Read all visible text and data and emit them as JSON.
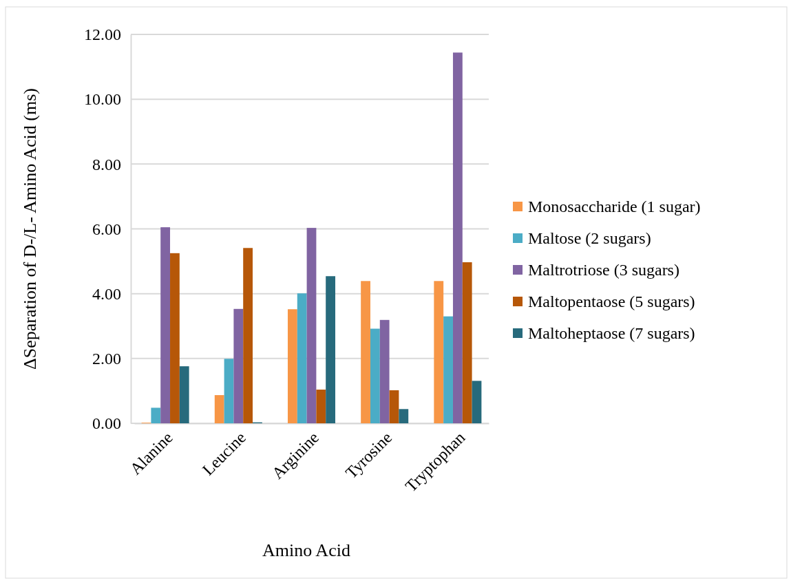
{
  "chart_data": {
    "type": "bar",
    "xlabel": "Amino Acid",
    "ylabel": "ΔSeparation of D-/L- Amino Acid (ms)",
    "categories": [
      "Alanine",
      "Leucine",
      "Arginine",
      "Tyrosine",
      "Tryptophan"
    ],
    "series": [
      {
        "name": "Monosaccharide (1 sugar)",
        "color": "#f79646",
        "values": [
          0.02,
          0.87,
          3.52,
          4.39,
          4.39
        ]
      },
      {
        "name": "Maltose (2 sugars)",
        "color": "#4bacc6",
        "values": [
          0.48,
          1.99,
          4.01,
          2.92,
          3.3
        ]
      },
      {
        "name": "Maltrotriose (3 sugars)",
        "color": "#8064a2",
        "values": [
          6.05,
          3.53,
          6.03,
          3.19,
          11.44
        ]
      },
      {
        "name": "Maltopentaose (5 sugars)",
        "color": "#b65708",
        "values": [
          5.25,
          5.41,
          1.04,
          1.02,
          4.97
        ]
      },
      {
        "name": "Maltoheptaose (7 sugars)",
        "color": "#276a7c",
        "values": [
          1.76,
          0.03,
          4.54,
          0.44,
          1.31
        ]
      }
    ],
    "ylim": [
      0,
      12
    ],
    "yticks": [
      {
        "value": 0,
        "label": "0.00"
      },
      {
        "value": 2,
        "label": "2.00"
      },
      {
        "value": 4,
        "label": "4.00"
      },
      {
        "value": 6,
        "label": "6.00"
      },
      {
        "value": 8,
        "label": "8.00"
      },
      {
        "value": 10,
        "label": "10.00"
      },
      {
        "value": 12,
        "label": "12.00"
      }
    ],
    "grid": "y",
    "legend": "right"
  }
}
